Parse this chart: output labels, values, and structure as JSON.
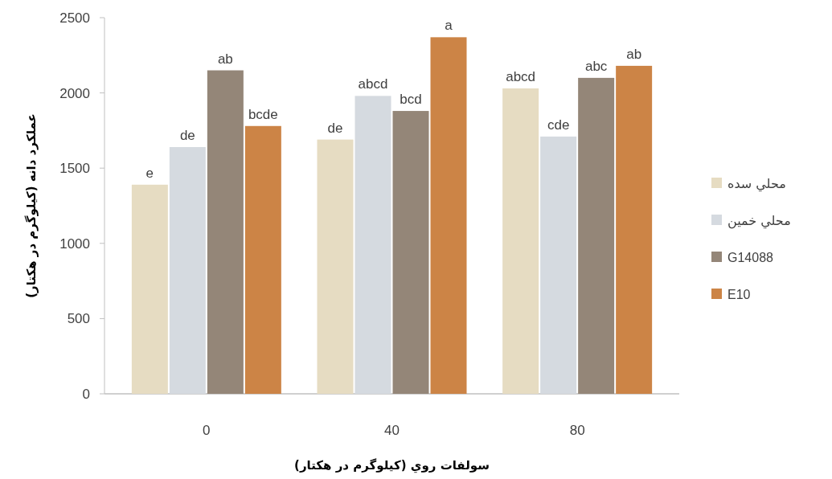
{
  "chart_data": {
    "type": "bar",
    "xlabel": "سولفات روي (کیلوگرم در هکتار)",
    "ylabel": "عملکرد دانه (کیلوگرم در هکتار)",
    "categories": [
      "0",
      "40",
      "80"
    ],
    "series": [
      {
        "name": "محلي سده",
        "color": "#e6dcc2",
        "values": [
          1390,
          1690,
          2030
        ],
        "value_labels": [
          "e",
          "de",
          "abcd"
        ]
      },
      {
        "name": "محلي خمين",
        "color": "#d5dae0",
        "values": [
          1640,
          1980,
          1710
        ],
        "value_labels": [
          "de",
          "abcd",
          "cde"
        ]
      },
      {
        "name": "G14088",
        "color": "#948678",
        "values": [
          2150,
          1880,
          2100
        ],
        "value_labels": [
          "ab",
          "bcd",
          "abc"
        ]
      },
      {
        "name": "E10",
        "color": "#cc8446",
        "values": [
          1780,
          2370,
          2180
        ],
        "value_labels": [
          "bcde",
          "a",
          "ab"
        ]
      }
    ],
    "ylim": [
      0,
      2500
    ],
    "yticks": [
      0,
      500,
      1000,
      1500,
      2000,
      2500
    ],
    "legend": "right"
  }
}
